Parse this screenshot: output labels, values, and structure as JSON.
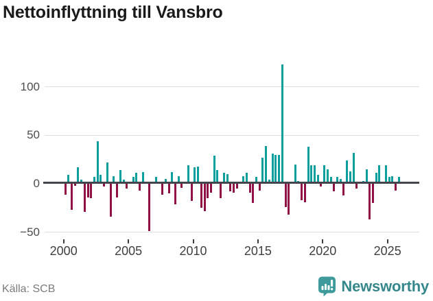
{
  "title": "Nettoinflyttning till Vansbro",
  "source": "Källa: SCB",
  "brand": {
    "name": "Newsworthy",
    "icon": "bar-chart-speech-bubble-icon"
  },
  "colors": {
    "positive_bar": "#0a9f9d",
    "negative_bar": "#8e1045",
    "gridline": "#dedede",
    "zero_line": "#42454c",
    "axis_text": "#4d4d4d",
    "title_text": "#1a1a1a",
    "source_text": "#7b7b7b",
    "brand_teal": "#35878b"
  },
  "chart_data": {
    "type": "bar",
    "title": "Nettoinflyttning till Vansbro",
    "xlabel": "",
    "ylabel": "",
    "frequency": "quarterly",
    "start_period": "2000-Q1",
    "end_period": "2025-Q4",
    "x_ticks": [
      2000,
      2005,
      2010,
      2015,
      2020,
      2025
    ],
    "y_ticks": [
      100,
      50,
      0,
      -50
    ],
    "ylim": [
      -55,
      130
    ],
    "grid": "horizontal",
    "legend": "none",
    "values": [
      -11,
      9,
      -27,
      -2,
      17,
      4,
      -29,
      -14,
      -15,
      7,
      44,
      9,
      -3,
      22,
      -34,
      8,
      -14,
      14,
      4,
      -5,
      0,
      7,
      11,
      -7,
      12,
      0,
      -49,
      0,
      7,
      0,
      -11,
      5,
      -10,
      12,
      -21,
      8,
      -4,
      0,
      19,
      -18,
      17,
      18,
      -25,
      -28,
      -15,
      -9,
      29,
      14,
      -15,
      11,
      10,
      -8,
      -9,
      -5,
      0,
      8,
      11,
      -9,
      -20,
      7,
      -7,
      27,
      39,
      4,
      31,
      30,
      30,
      123,
      -24,
      -32,
      0,
      20,
      3,
      -17,
      -19,
      38,
      19,
      19,
      9,
      -3,
      19,
      15,
      7,
      -8,
      7,
      5,
      -12,
      24,
      13,
      32,
      -5,
      2,
      3,
      15,
      -37,
      -20,
      11,
      19,
      0,
      19,
      7,
      8,
      -7,
      7
    ]
  }
}
